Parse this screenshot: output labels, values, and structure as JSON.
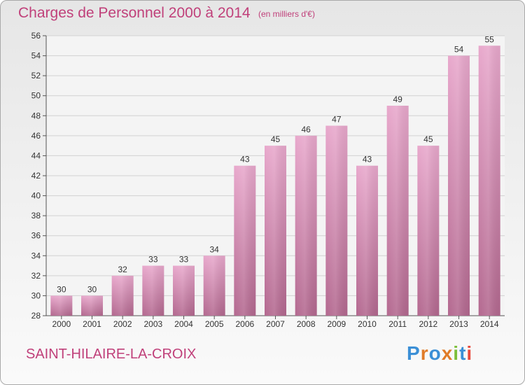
{
  "header": {
    "title": "Charges de Personnel 2000 à 2014",
    "subtitle": "(en milliers d'€)"
  },
  "footer": {
    "town": "SAINT-HILAIRE-LA-CROIX",
    "logo_text": "Proxiti",
    "logo_colors": [
      "#3b8fd6",
      "#e07b28",
      "#3b8fd6",
      "#e07b28",
      "#7cbf3a",
      "#3b8fd6",
      "#e84a3d"
    ]
  },
  "colors": {
    "accent": "#c0407a",
    "bar_top": "#e8a8cc",
    "bar_bottom": "#b3688f",
    "grid": "#d2d2d2",
    "axis": "#555555"
  },
  "chart_data": {
    "type": "bar",
    "title": "Charges de Personnel 2000 à 2014",
    "subtitle": "(en milliers d'€)",
    "categories": [
      "2000",
      "2001",
      "2002",
      "2003",
      "2004",
      "2005",
      "2006",
      "2007",
      "2008",
      "2009",
      "2010",
      "2011",
      "2012",
      "2013",
      "2014"
    ],
    "values": [
      30,
      30,
      32,
      33,
      33,
      34,
      43,
      45,
      46,
      47,
      43,
      49,
      45,
      54,
      55
    ],
    "ylim": [
      28,
      56
    ],
    "yticks": [
      28,
      30,
      32,
      34,
      36,
      38,
      40,
      42,
      44,
      46,
      48,
      50,
      52,
      54,
      56
    ],
    "grid": true,
    "data_labels": true
  }
}
